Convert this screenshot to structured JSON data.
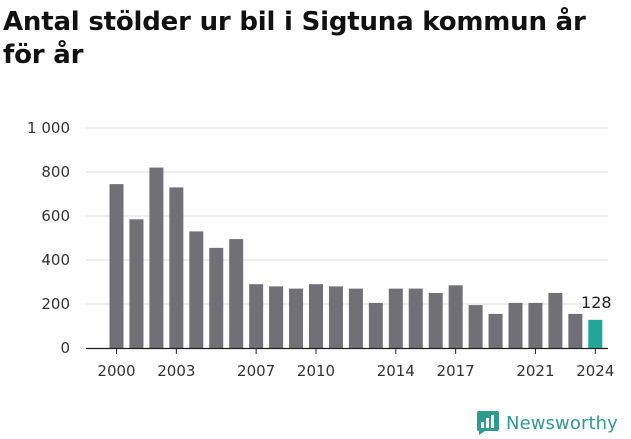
{
  "title": "Antal stölder ur bil i Sigtuna kommun år för år",
  "brand": {
    "name": "Newsworthy",
    "icon": "newsworthy-logo-icon",
    "color": "#2f9b8f"
  },
  "colors": {
    "bar": "#717076",
    "highlight": "#1fa89a",
    "grid": "#dddddd",
    "axis": "#222222"
  },
  "chart_data": {
    "type": "bar",
    "title": "Antal stölder ur bil i Sigtuna kommun år för år",
    "xlabel": "",
    "ylabel": "",
    "categories": [
      2000,
      2001,
      2002,
      2003,
      2004,
      2005,
      2006,
      2007,
      2008,
      2009,
      2010,
      2011,
      2012,
      2013,
      2014,
      2015,
      2016,
      2017,
      2018,
      2019,
      2020,
      2021,
      2022,
      2023,
      2024
    ],
    "values": [
      745,
      585,
      820,
      730,
      530,
      455,
      495,
      290,
      280,
      270,
      290,
      280,
      270,
      205,
      270,
      270,
      250,
      285,
      195,
      155,
      205,
      205,
      250,
      155,
      128
    ],
    "x_tick_labels": [
      "2000",
      "2003",
      "2007",
      "2010",
      "2014",
      "2017",
      "2021",
      "2024"
    ],
    "x_tick_years": [
      2000,
      2003,
      2007,
      2010,
      2014,
      2017,
      2021,
      2024
    ],
    "y_ticks": [
      0,
      200,
      400,
      600,
      800,
      1000
    ],
    "y_tick_labels": [
      "0",
      "200",
      "400",
      "600",
      "800",
      "1 000"
    ],
    "ylim": [
      0,
      1000
    ],
    "grid": true,
    "highlight": {
      "category": 2024,
      "label": "128"
    }
  }
}
